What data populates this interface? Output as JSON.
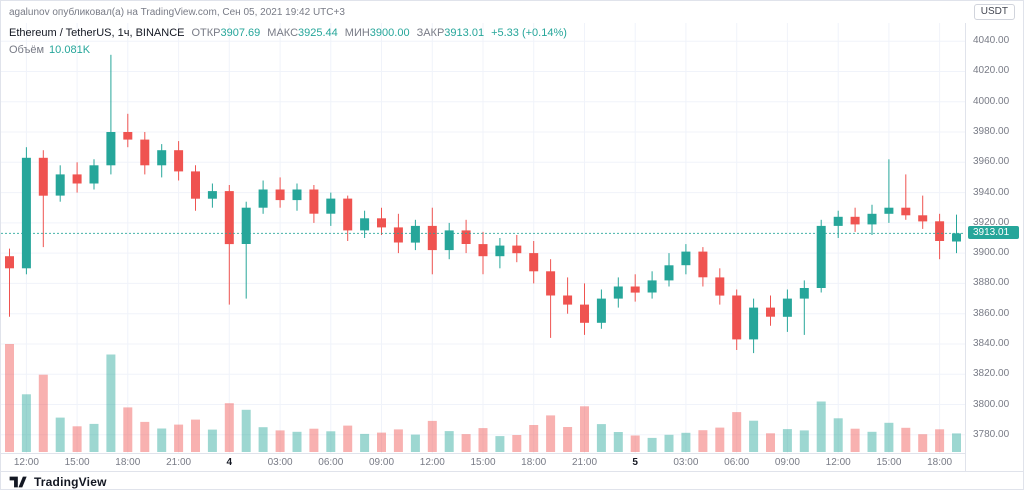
{
  "top_bar": {
    "attribution": "agalunov опубликовал(а) на TradingView.com, Сен 05, 2021 19:42 UTC+3",
    "symbol_badge": "USDT"
  },
  "legend": {
    "title": "Ethereum / TetherUS, 1ч, BINANCE",
    "ohlc": [
      {
        "label": "ОТКР",
        "value": "3907.69"
      },
      {
        "label": "МАКС",
        "value": "3925.44"
      },
      {
        "label": "МИН",
        "value": "3900.00"
      },
      {
        "label": "ЗАКР",
        "value": "3913.01"
      }
    ],
    "change": "+5.33 (+0.14%)",
    "volume_label": "Объём",
    "volume_value": "10.081K"
  },
  "footer": {
    "brand": "TradingView"
  },
  "colors": {
    "up": "#26a69a",
    "down": "#ef5350",
    "vol_up": "rgba(38,166,154,0.45)",
    "vol_down": "rgba(239,83,80,0.45)",
    "grid": "#f0f3fa",
    "axis_text": "#787b86",
    "text": "#131722",
    "price_tag_bg": "#26a69a"
  },
  "chart_data": {
    "type": "candlestick",
    "title": "Ethereum / TetherUS, 1ч, BINANCE",
    "last_price": 3913.01,
    "volume_pane": true,
    "price_axis": {
      "min": 3768,
      "max": 4052,
      "tick_step": 20,
      "ticks": [
        3780,
        3800,
        3820,
        3840,
        3860,
        3880,
        3900,
        3920,
        3940,
        3960,
        3980,
        4000,
        4020,
        4040
      ]
    },
    "time_labels": [
      {
        "i": 1,
        "label": "12:00"
      },
      {
        "i": 4,
        "label": "15:00"
      },
      {
        "i": 7,
        "label": "18:00"
      },
      {
        "i": 10,
        "label": "21:00"
      },
      {
        "i": 13,
        "label": "4",
        "strong": true
      },
      {
        "i": 16,
        "label": "03:00"
      },
      {
        "i": 19,
        "label": "06:00"
      },
      {
        "i": 22,
        "label": "09:00"
      },
      {
        "i": 25,
        "label": "12:00"
      },
      {
        "i": 28,
        "label": "15:00"
      },
      {
        "i": 31,
        "label": "18:00"
      },
      {
        "i": 34,
        "label": "21:00"
      },
      {
        "i": 37,
        "label": "5",
        "strong": true
      },
      {
        "i": 40,
        "label": "03:00"
      },
      {
        "i": 43,
        "label": "06:00"
      },
      {
        "i": 46,
        "label": "09:00"
      },
      {
        "i": 49,
        "label": "12:00"
      },
      {
        "i": 52,
        "label": "15:00"
      },
      {
        "i": 55,
        "label": "18:00"
      }
    ],
    "candles_format": [
      "open",
      "high",
      "low",
      "close",
      "volume_k"
    ],
    "candles": [
      [
        3898,
        3903,
        3858,
        3890,
        58.4
      ],
      [
        3890,
        3970,
        3886,
        3963,
        31.2
      ],
      [
        3963,
        3968,
        3904,
        3938,
        41.8
      ],
      [
        3938,
        3958,
        3934,
        3952,
        18.6
      ],
      [
        3952,
        3960,
        3940,
        3946,
        13.9
      ],
      [
        3946,
        3962,
        3942,
        3958,
        15.2
      ],
      [
        3958,
        4031,
        3952,
        3980,
        52.7
      ],
      [
        3980,
        3992,
        3970,
        3975,
        24.1
      ],
      [
        3975,
        3980,
        3952,
        3958,
        16.3
      ],
      [
        3958,
        3972,
        3950,
        3968,
        12.7
      ],
      [
        3968,
        3974,
        3948,
        3954,
        14.8
      ],
      [
        3954,
        3958,
        3928,
        3936,
        17.5
      ],
      [
        3936,
        3946,
        3930,
        3941,
        12.1
      ],
      [
        3941,
        3945,
        3866,
        3906,
        26.4
      ],
      [
        3906,
        3934,
        3870,
        3930,
        22.8
      ],
      [
        3930,
        3948,
        3926,
        3942,
        13.4
      ],
      [
        3942,
        3950,
        3930,
        3935,
        11.7
      ],
      [
        3935,
        3946,
        3928,
        3942,
        10.9
      ],
      [
        3942,
        3945,
        3920,
        3926,
        12.6
      ],
      [
        3926,
        3940,
        3918,
        3936,
        11.2
      ],
      [
        3936,
        3938,
        3908,
        3915,
        14.3
      ],
      [
        3915,
        3928,
        3910,
        3923,
        9.8
      ],
      [
        3923,
        3930,
        3912,
        3917,
        10.5
      ],
      [
        3917,
        3926,
        3900,
        3907,
        12.2
      ],
      [
        3907,
        3922,
        3902,
        3918,
        9.4
      ],
      [
        3918,
        3930,
        3886,
        3902,
        16.8
      ],
      [
        3902,
        3920,
        3896,
        3915,
        11.3
      ],
      [
        3915,
        3922,
        3900,
        3906,
        9.7
      ],
      [
        3906,
        3914,
        3886,
        3898,
        12.9
      ],
      [
        3898,
        3910,
        3890,
        3905,
        8.6
      ],
      [
        3905,
        3912,
        3894,
        3900,
        9.2
      ],
      [
        3900,
        3908,
        3880,
        3888,
        14.6
      ],
      [
        3888,
        3896,
        3844,
        3872,
        19.8
      ],
      [
        3872,
        3884,
        3860,
        3866,
        13.5
      ],
      [
        3866,
        3880,
        3846,
        3854,
        24.7
      ],
      [
        3854,
        3876,
        3850,
        3870,
        15.1
      ],
      [
        3870,
        3884,
        3864,
        3878,
        10.8
      ],
      [
        3878,
        3886,
        3868,
        3874,
        8.9
      ],
      [
        3874,
        3888,
        3870,
        3882,
        7.6
      ],
      [
        3882,
        3900,
        3878,
        3892,
        9.3
      ],
      [
        3892,
        3906,
        3886,
        3901,
        10.4
      ],
      [
        3901,
        3904,
        3878,
        3884,
        11.8
      ],
      [
        3884,
        3890,
        3866,
        3872,
        13.2
      ],
      [
        3872,
        3876,
        3836,
        3843,
        21.6
      ],
      [
        3843,
        3870,
        3834,
        3864,
        16.9
      ],
      [
        3864,
        3872,
        3852,
        3858,
        10.1
      ],
      [
        3858,
        3876,
        3848,
        3870,
        12.4
      ],
      [
        3870,
        3882,
        3846,
        3877,
        11.7
      ],
      [
        3877,
        3922,
        3874,
        3918,
        27.3
      ],
      [
        3918,
        3928,
        3910,
        3924,
        18.2
      ],
      [
        3924,
        3930,
        3914,
        3919,
        12.6
      ],
      [
        3919,
        3932,
        3912,
        3926,
        10.9
      ],
      [
        3926,
        3962,
        3920,
        3930,
        15.8
      ],
      [
        3930,
        3952,
        3922,
        3925,
        13.1
      ],
      [
        3925,
        3938,
        3916,
        3921,
        9.6
      ],
      [
        3921,
        3926,
        3896,
        3908,
        12.3
      ],
      [
        3907.69,
        3925.44,
        3900,
        3913.01,
        10.081
      ]
    ]
  }
}
